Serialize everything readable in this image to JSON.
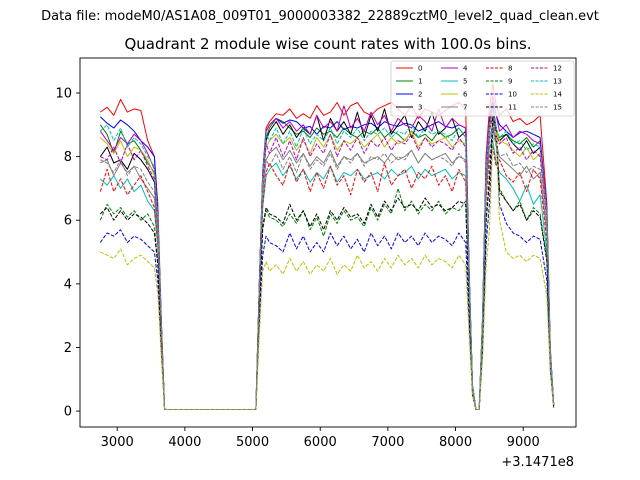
{
  "chart_data": {
    "type": "line",
    "suptitle": "Data file: modeM0/AS1A08_009T01_9000003382_22889cztM0_level2_quad_clean.evt",
    "title": "Quadrant 2 module wise count rates with 100.0s bins.",
    "xlabel": "",
    "ylabel": "",
    "offset_text": "+3.1471e8",
    "xlim": [
      2450,
      9780
    ],
    "ylim": [
      -0.5,
      11.1
    ],
    "xticks": [
      3000,
      4000,
      5000,
      6000,
      7000,
      8000,
      9000
    ],
    "xtick_labels": [
      "3000",
      "4000",
      "5000",
      "6000",
      "7000",
      "8000",
      "9000"
    ],
    "yticks": [
      0,
      2,
      4,
      6,
      8,
      10
    ],
    "ytick_labels": [
      "0",
      "2",
      "4",
      "6",
      "8",
      "10"
    ],
    "grid": false,
    "legend_position": "top-right",
    "x": [
      2750,
      2850,
      2950,
      3050,
      3150,
      3250,
      3350,
      3450,
      3550,
      3600,
      3650,
      3700,
      3750,
      5050,
      5100,
      5150,
      5200,
      5250,
      5350,
      5450,
      5550,
      5650,
      5750,
      5850,
      5950,
      6050,
      6150,
      6250,
      6350,
      6450,
      6550,
      6650,
      6750,
      6850,
      6950,
      7050,
      7150,
      7250,
      7350,
      7450,
      7550,
      7650,
      7750,
      7850,
      7950,
      8050,
      8150,
      8200,
      8250,
      8300,
      8350,
      8400,
      8450,
      8500,
      8550,
      8600,
      8650,
      8750,
      8850,
      8950,
      9050,
      9150,
      9250,
      9350,
      9400,
      9450
    ],
    "series": [
      {
        "name": "0",
        "color": "#ff0000",
        "dash": "solid",
        "values": [
          9.4,
          9.55,
          9.3,
          9.8,
          9.4,
          9.5,
          9.45,
          8.5,
          8.0,
          6.5,
          3.0,
          0.05,
          0.05,
          0.05,
          4.0,
          7.5,
          8.9,
          9.1,
          9.35,
          9.3,
          9.5,
          9.2,
          9.35,
          9.2,
          9.6,
          9.3,
          9.4,
          9.7,
          9.3,
          9.6,
          9.7,
          9.4,
          9.3,
          9.5,
          9.6,
          9.7,
          9.5,
          9.3,
          9.6,
          9.2,
          9.5,
          9.4,
          9.3,
          9.45,
          9.6,
          9.7,
          9.5,
          4.5,
          0.8,
          0.05,
          0.05,
          3.0,
          8.0,
          9.5,
          10.3,
          9.6,
          9.3,
          9.5,
          9.1,
          9.2,
          9.0,
          9.1,
          9.3,
          6.5,
          2.0,
          0.2
        ]
      },
      {
        "name": "1",
        "color": "#008000",
        "dash": "solid",
        "values": [
          9.0,
          8.7,
          8.1,
          8.8,
          8.4,
          8.5,
          8.2,
          7.8,
          7.5,
          6.0,
          2.8,
          0.05,
          0.05,
          0.05,
          3.8,
          7.2,
          8.6,
          8.9,
          9.2,
          9.1,
          8.9,
          8.7,
          8.8,
          8.6,
          8.9,
          8.7,
          8.8,
          8.6,
          8.9,
          8.7,
          8.6,
          8.8,
          8.7,
          8.9,
          8.6,
          8.8,
          8.7,
          8.5,
          8.8,
          8.6,
          8.7,
          8.5,
          8.8,
          8.6,
          8.7,
          8.9,
          8.6,
          4.3,
          0.8,
          0.05,
          0.05,
          2.8,
          7.5,
          9.0,
          9.2,
          8.8,
          8.6,
          8.7,
          8.5,
          8.4,
          8.6,
          8.3,
          8.5,
          6.2,
          1.8,
          0.2
        ]
      },
      {
        "name": "2",
        "color": "#0000ff",
        "dash": "solid",
        "values": [
          9.25,
          9.05,
          8.9,
          9.15,
          9.0,
          8.8,
          8.5,
          8.3,
          8.0,
          6.3,
          2.9,
          0.05,
          0.05,
          0.05,
          4.0,
          7.5,
          8.8,
          9.0,
          9.2,
          9.05,
          9.15,
          9.1,
          8.9,
          8.95,
          8.7,
          8.95,
          8.9,
          9.1,
          8.85,
          8.95,
          8.9,
          9.0,
          9.05,
          8.9,
          9.1,
          9.0,
          8.95,
          9.05,
          9.0,
          8.8,
          8.9,
          9.0,
          9.1,
          8.95,
          8.9,
          9.0,
          8.9,
          4.4,
          0.8,
          0.05,
          0.05,
          2.9,
          7.7,
          9.1,
          9.7,
          9.3,
          9.0,
          8.8,
          8.6,
          8.75,
          8.8,
          8.7,
          8.6,
          6.3,
          1.9,
          0.2
        ]
      },
      {
        "name": "3",
        "color": "#000000",
        "dash": "solid",
        "values": [
          8.0,
          8.3,
          7.8,
          7.9,
          7.6,
          8.1,
          7.9,
          7.6,
          7.2,
          5.8,
          2.7,
          0.05,
          0.05,
          0.05,
          3.9,
          7.3,
          8.5,
          8.8,
          9.1,
          8.7,
          9.0,
          8.6,
          8.9,
          8.7,
          9.3,
          8.5,
          9.2,
          8.8,
          9.1,
          8.7,
          9.4,
          8.6,
          9.3,
          8.8,
          9.5,
          8.7,
          9.0,
          9.3,
          8.6,
          9.1,
          8.8,
          9.4,
          8.7,
          8.9,
          9.2,
          8.6,
          8.8,
          4.2,
          0.8,
          0.05,
          0.05,
          2.9,
          7.6,
          9.0,
          9.6,
          8.9,
          8.5,
          8.7,
          8.4,
          8.2,
          8.5,
          8.1,
          8.3,
          6.0,
          1.8,
          0.2
        ]
      },
      {
        "name": "4",
        "color": "#bf00bf",
        "dash": "solid",
        "values": [
          8.8,
          8.5,
          8.2,
          8.6,
          8.4,
          8.7,
          8.5,
          8.1,
          7.6,
          6.0,
          2.8,
          0.05,
          0.05,
          0.05,
          3.9,
          7.4,
          8.8,
          9.0,
          9.2,
          8.9,
          9.1,
          8.8,
          9.0,
          8.7,
          9.3,
          8.9,
          9.1,
          8.8,
          9.6,
          8.9,
          9.2,
          8.8,
          9.4,
          9.0,
          9.3,
          8.8,
          9.2,
          9.0,
          8.9,
          9.3,
          9.1,
          8.8,
          9.5,
          8.9,
          9.2,
          9.0,
          8.9,
          4.4,
          0.8,
          0.05,
          0.05,
          2.9,
          7.8,
          9.2,
          9.9,
          9.3,
          8.8,
          9.0,
          8.6,
          8.8,
          8.7,
          8.5,
          8.4,
          6.3,
          1.9,
          0.2
        ]
      },
      {
        "name": "5",
        "color": "#00bfbf",
        "dash": "solid",
        "values": [
          7.3,
          7.1,
          7.4,
          7.0,
          7.3,
          6.9,
          7.1,
          6.6,
          6.3,
          5.2,
          2.5,
          0.05,
          0.05,
          0.05,
          3.4,
          6.4,
          7.4,
          7.6,
          7.8,
          7.4,
          7.7,
          7.3,
          7.6,
          7.2,
          7.5,
          7.3,
          7.7,
          7.2,
          7.5,
          7.4,
          7.6,
          7.3,
          7.4,
          7.5,
          7.3,
          7.6,
          7.4,
          7.5,
          7.7,
          7.3,
          7.6,
          7.4,
          7.5,
          7.6,
          7.3,
          7.5,
          7.4,
          3.8,
          0.7,
          0.05,
          0.05,
          2.6,
          6.8,
          8.3,
          8.5,
          7.8,
          7.5,
          7.3,
          7.0,
          6.6,
          7.1,
          6.5,
          6.8,
          5.0,
          1.6,
          0.15
        ]
      },
      {
        "name": "6",
        "color": "#bfbf00",
        "dash": "solid",
        "values": [
          8.6,
          8.4,
          8.1,
          8.5,
          8.0,
          8.3,
          8.2,
          7.9,
          7.4,
          5.9,
          2.7,
          0.05,
          0.05,
          0.05,
          3.8,
          7.1,
          8.3,
          8.5,
          8.7,
          8.4,
          8.6,
          8.2,
          8.5,
          8.1,
          8.6,
          8.3,
          8.7,
          8.2,
          8.5,
          8.4,
          8.6,
          8.3,
          8.5,
          8.7,
          8.3,
          8.6,
          8.4,
          8.5,
          8.8,
          8.3,
          8.6,
          8.4,
          8.5,
          8.6,
          8.3,
          8.5,
          8.4,
          4.2,
          0.8,
          0.05,
          0.05,
          2.8,
          7.3,
          8.8,
          9.4,
          8.9,
          8.5,
          8.4,
          8.2,
          8.0,
          8.3,
          7.9,
          8.1,
          6.0,
          1.8,
          0.2
        ]
      },
      {
        "name": "7",
        "color": "#808080",
        "dash": "solid",
        "values": [
          7.8,
          7.9,
          7.4,
          7.8,
          7.5,
          7.7,
          7.3,
          7.0,
          6.7,
          5.5,
          2.6,
          0.05,
          0.05,
          0.05,
          3.6,
          6.8,
          7.9,
          8.1,
          8.3,
          7.9,
          8.2,
          7.8,
          8.1,
          7.7,
          8.0,
          7.8,
          8.2,
          7.7,
          8.0,
          7.9,
          8.1,
          7.8,
          7.9,
          8.0,
          7.8,
          8.1,
          7.9,
          8.0,
          8.2,
          7.8,
          8.1,
          7.9,
          8.0,
          8.1,
          7.8,
          8.0,
          7.9,
          4.0,
          0.7,
          0.05,
          0.05,
          2.7,
          7.0,
          8.6,
          9.0,
          8.4,
          8.0,
          7.8,
          7.6,
          7.4,
          7.7,
          7.3,
          7.5,
          5.6,
          1.7,
          0.2
        ]
      },
      {
        "name": "8",
        "color": "#ff0000",
        "dash": "dashed",
        "values": [
          6.9,
          7.6,
          6.9,
          7.3,
          6.8,
          7.1,
          7.4,
          6.9,
          6.4,
          5.3,
          2.5,
          0.05,
          0.05,
          0.05,
          3.5,
          6.5,
          7.5,
          7.8,
          7.4,
          7.1,
          7.8,
          7.2,
          7.6,
          6.9,
          7.5,
          7.0,
          7.7,
          7.1,
          7.4,
          6.8,
          7.6,
          7.2,
          7.5,
          6.9,
          7.8,
          7.1,
          7.4,
          7.6,
          7.0,
          7.5,
          7.3,
          7.7,
          7.1,
          7.4,
          6.9,
          7.6,
          7.2,
          3.7,
          0.7,
          0.05,
          0.05,
          2.5,
          6.6,
          8.0,
          8.3,
          7.7,
          7.9,
          7.4,
          7.2,
          7.5,
          6.9,
          7.6,
          7.3,
          5.3,
          1.6,
          0.15
        ]
      },
      {
        "name": "9",
        "color": "#008000",
        "dash": "dashed",
        "values": [
          6.0,
          6.5,
          6.2,
          6.4,
          6.1,
          6.3,
          6.0,
          6.2,
          5.8,
          4.7,
          2.2,
          0.05,
          0.05,
          0.05,
          3.1,
          5.7,
          6.3,
          6.1,
          6.0,
          5.8,
          6.2,
          5.9,
          6.3,
          5.7,
          6.1,
          5.5,
          6.2,
          5.9,
          6.3,
          6.0,
          6.1,
          5.8,
          6.4,
          6.0,
          6.5,
          6.2,
          7.0,
          6.3,
          6.6,
          6.2,
          6.5,
          6.3,
          6.6,
          6.2,
          6.4,
          6.3,
          6.6,
          3.4,
          0.6,
          0.05,
          0.05,
          2.3,
          6.0,
          7.4,
          9.1,
          8.5,
          7.0,
          6.6,
          6.3,
          6.6,
          6.0,
          6.4,
          6.2,
          4.8,
          1.5,
          0.15
        ]
      },
      {
        "name": "10",
        "color": "#0000ff",
        "dash": "dashed",
        "values": [
          5.3,
          5.6,
          5.5,
          5.7,
          5.3,
          5.5,
          5.4,
          5.2,
          5.0,
          4.1,
          1.9,
          0.05,
          0.05,
          0.05,
          2.7,
          4.9,
          5.5,
          5.3,
          5.2,
          5.0,
          5.6,
          5.1,
          5.5,
          5.0,
          5.3,
          5.0,
          5.6,
          5.2,
          5.5,
          5.1,
          5.4,
          5.0,
          5.6,
          5.2,
          5.5,
          5.1,
          5.6,
          5.3,
          5.5,
          5.2,
          5.6,
          5.3,
          5.5,
          5.4,
          5.2,
          5.6,
          5.3,
          2.8,
          0.5,
          0.05,
          0.05,
          1.9,
          5.2,
          6.5,
          8.8,
          8.6,
          6.5,
          5.9,
          5.6,
          5.5,
          5.3,
          5.5,
          5.4,
          4.1,
          1.3,
          0.1
        ]
      },
      {
        "name": "11",
        "color": "#000000",
        "dash": "dashed",
        "values": [
          6.2,
          6.4,
          6.0,
          6.3,
          6.0,
          6.2,
          6.1,
          5.9,
          5.6,
          4.6,
          2.2,
          0.05,
          0.05,
          0.05,
          3.1,
          5.8,
          6.4,
          6.2,
          6.1,
          5.9,
          6.5,
          6.0,
          6.3,
          5.8,
          6.2,
          5.7,
          6.3,
          6.0,
          6.4,
          6.1,
          6.2,
          5.9,
          6.5,
          6.1,
          6.6,
          6.3,
          6.7,
          6.4,
          6.5,
          6.3,
          6.7,
          6.4,
          6.5,
          6.3,
          6.4,
          6.6,
          6.5,
          3.3,
          0.6,
          0.05,
          0.05,
          2.2,
          5.9,
          7.2,
          9.3,
          8.9,
          6.9,
          6.6,
          6.3,
          6.5,
          6.0,
          6.3,
          6.1,
          4.7,
          1.5,
          0.15
        ]
      },
      {
        "name": "12",
        "color": "#bf00bf",
        "dash": "dashed",
        "values": [
          8.0,
          7.9,
          8.3,
          7.8,
          8.4,
          7.9,
          8.2,
          7.7,
          7.3,
          5.8,
          2.7,
          0.05,
          0.05,
          0.05,
          3.7,
          7.0,
          8.4,
          8.1,
          8.6,
          8.0,
          8.5,
          7.9,
          8.6,
          8.0,
          8.4,
          8.1,
          8.7,
          8.0,
          8.5,
          8.2,
          8.6,
          8.1,
          8.5,
          8.3,
          8.6,
          8.2,
          8.5,
          8.4,
          8.7,
          8.2,
          8.6,
          8.3,
          8.5,
          8.4,
          8.2,
          8.6,
          8.3,
          4.2,
          0.8,
          0.05,
          0.05,
          2.8,
          7.3,
          8.8,
          9.3,
          8.7,
          8.4,
          8.6,
          8.1,
          8.3,
          7.9,
          8.2,
          8.0,
          6.0,
          1.8,
          0.2
        ]
      },
      {
        "name": "13",
        "color": "#00bfbf",
        "dash": "dashed",
        "values": [
          8.8,
          9.0,
          8.5,
          8.9,
          8.3,
          8.6,
          8.4,
          8.0,
          7.7,
          6.1,
          2.8,
          0.05,
          0.05,
          0.05,
          3.9,
          7.4,
          8.7,
          8.5,
          8.9,
          8.4,
          8.8,
          8.3,
          8.9,
          8.4,
          8.7,
          8.5,
          8.9,
          8.4,
          8.8,
          8.6,
          8.9,
          8.5,
          8.8,
          8.7,
          8.9,
          8.6,
          8.8,
          8.7,
          9.0,
          8.6,
          8.9,
          8.7,
          8.8,
          8.7,
          8.5,
          8.9,
          8.6,
          4.3,
          0.8,
          0.05,
          0.05,
          2.9,
          7.6,
          9.0,
          9.5,
          8.9,
          8.6,
          8.8,
          8.4,
          8.5,
          8.2,
          8.4,
          8.3,
          6.2,
          1.9,
          0.2
        ]
      },
      {
        "name": "14",
        "color": "#bfbf00",
        "dash": "dashed",
        "values": [
          5.0,
          4.9,
          4.8,
          5.1,
          4.6,
          4.8,
          4.9,
          4.7,
          4.5,
          3.7,
          1.8,
          0.05,
          0.05,
          0.05,
          2.4,
          4.4,
          4.7,
          4.4,
          4.6,
          4.3,
          4.8,
          4.4,
          4.7,
          4.3,
          4.6,
          4.4,
          4.8,
          4.3,
          4.6,
          4.4,
          4.9,
          4.5,
          4.7,
          4.4,
          4.8,
          4.5,
          4.9,
          4.6,
          4.8,
          4.5,
          4.9,
          4.6,
          4.8,
          4.7,
          4.5,
          4.9,
          4.6,
          2.4,
          0.5,
          0.05,
          0.05,
          1.7,
          4.5,
          5.7,
          8.5,
          8.8,
          6.0,
          5.0,
          4.8,
          4.9,
          4.7,
          4.9,
          4.8,
          3.6,
          1.2,
          0.1
        ]
      },
      {
        "name": "15",
        "color": "#808080",
        "dash": "dashed",
        "values": [
          7.9,
          7.8,
          7.5,
          7.9,
          7.4,
          7.7,
          7.6,
          7.2,
          6.9,
          5.5,
          2.6,
          0.05,
          0.05,
          0.05,
          3.6,
          6.8,
          7.9,
          7.7,
          8.1,
          7.6,
          8.0,
          7.5,
          8.1,
          7.6,
          7.9,
          7.7,
          8.1,
          7.6,
          8.0,
          7.8,
          8.1,
          7.7,
          8.0,
          7.9,
          8.1,
          7.8,
          8.0,
          7.9,
          8.2,
          7.8,
          8.1,
          7.9,
          8.0,
          7.9,
          7.7,
          8.1,
          7.8,
          3.9,
          0.7,
          0.05,
          0.05,
          2.6,
          6.9,
          8.4,
          8.9,
          8.3,
          8.0,
          8.1,
          7.7,
          7.8,
          7.5,
          7.7,
          7.6,
          5.7,
          1.7,
          0.2
        ]
      }
    ]
  }
}
